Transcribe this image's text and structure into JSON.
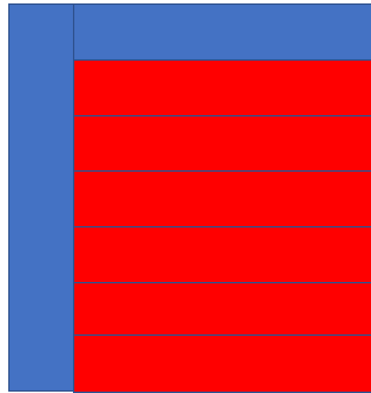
{
  "colors": {
    "blue_fill": "#4472c4",
    "red_fill": "#ff0000",
    "outline": "#2f528f"
  },
  "blocks": {
    "left_column": {
      "fill": "blue"
    },
    "top_bar": {
      "fill": "blue"
    },
    "rows": [
      {
        "fill": "red"
      },
      {
        "fill": "red"
      },
      {
        "fill": "red"
      },
      {
        "fill": "red"
      },
      {
        "fill": "red"
      },
      {
        "fill": "red"
      }
    ]
  }
}
